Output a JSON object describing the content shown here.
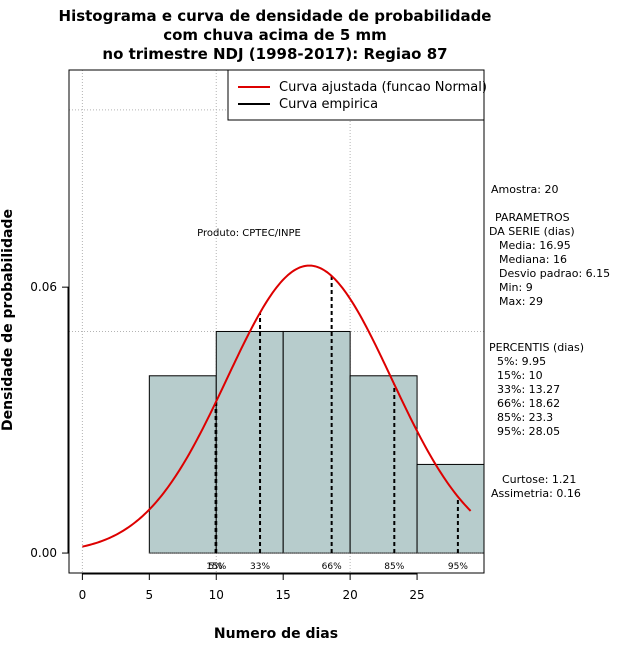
{
  "chart_data": {
    "type": "bar",
    "title_lines": [
      "Histograma e curva de densidade de probabilidade",
      "com chuva acima de 5 mm",
      "no trimestre NDJ (1998-2017): Regiao 87"
    ],
    "xlabel": "Numero de dias",
    "ylabel": "Densidade de probabilidade",
    "xlim": [
      -1,
      30
    ],
    "ylim": [
      -0.0045,
      0.109
    ],
    "x_ticks": [
      0,
      5,
      10,
      15,
      20,
      25
    ],
    "y_ticks": [
      0.0,
      0.06
    ],
    "y_tick_labels": [
      "0.00",
      "0.06"
    ],
    "x_grid": [
      0,
      10,
      20
    ],
    "y_grid": [
      0.05,
      0.1
    ],
    "grid": true,
    "bars": [
      {
        "x0": 5,
        "x1": 10,
        "density": 0.04
      },
      {
        "x0": 10,
        "x1": 15,
        "density": 0.05
      },
      {
        "x0": 15,
        "x1": 20,
        "density": 0.05
      },
      {
        "x0": 20,
        "x1": 25,
        "density": 0.04
      },
      {
        "x0": 25,
        "x1": 30,
        "density": 0.02
      }
    ],
    "bar_color": "#b7cccc",
    "normal_curve": {
      "mean": 16.95,
      "sd": 6.15,
      "x_from": 0,
      "x_to": 29,
      "color": "#dd0000"
    },
    "percentiles": [
      {
        "label": "5%",
        "value": 9.95
      },
      {
        "label": "15%",
        "value": 10
      },
      {
        "label": "33%",
        "value": 13.27
      },
      {
        "label": "66%",
        "value": 18.62
      },
      {
        "label": "85%",
        "value": 23.3
      },
      {
        "label": "95%",
        "value": 28.05
      }
    ],
    "legend": {
      "placement": "top-right",
      "entries": [
        {
          "label": "Curva ajustada (funcao Normal)",
          "color": "#dd0000"
        },
        {
          "label": "Curva empirica",
          "color": "#000000"
        }
      ]
    },
    "annotation": "Produto: CPTEC/INPE"
  },
  "stats_panel": {
    "amostra": "Amostra: 20",
    "parametros_title_1": "PARAMETROS",
    "parametros_title_2": "DA SERIE (dias)",
    "media": "Media: 16.95",
    "mediana": "Mediana: 16",
    "desvio": "Desvio padrao: 6.15",
    "min": "Min: 9",
    "max": "Max: 29",
    "percentis_title": "PERCENTIS (dias)",
    "p5": "5%: 9.95",
    "p15": "15%: 10",
    "p33": "33%: 13.27",
    "p66": "66%: 18.62",
    "p85": "85%: 23.3",
    "p95": "95%: 28.05",
    "curtose": "Curtose: 1.21",
    "assimetria": "Assimetria: 0.16"
  }
}
